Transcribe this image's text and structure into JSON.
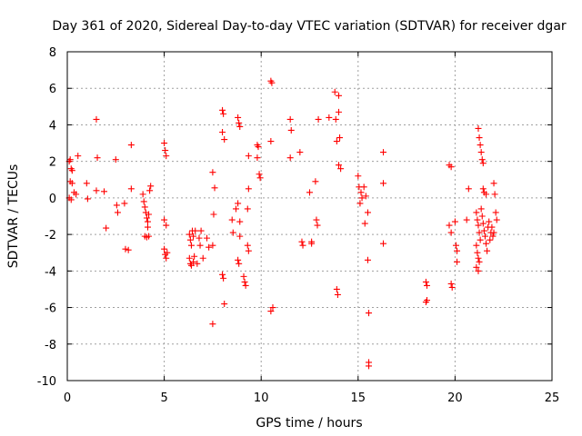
{
  "chart_data": {
    "type": "scatter",
    "title": "Day 361 of 2020, Sidereal Day-to-day VTEC variation (SDTVAR) for receiver dgar",
    "xlabel": "GPS time / hours",
    "ylabel": "SDTVAR / TECUs",
    "xlim": [
      0,
      25
    ],
    "ylim": [
      -10,
      8
    ],
    "xticks": [
      0,
      5,
      10,
      15,
      20,
      25
    ],
    "yticks": [
      -10,
      -8,
      -6,
      -4,
      -2,
      0,
      2,
      4,
      6,
      8
    ],
    "grid": true,
    "marker": "+",
    "color": "#ff0000",
    "series": [
      {
        "name": "SDTVAR",
        "points": [
          [
            0.1,
            2.0
          ],
          [
            0.15,
            2.1
          ],
          [
            0.2,
            1.6
          ],
          [
            0.25,
            1.5
          ],
          [
            0.15,
            0.9
          ],
          [
            0.25,
            0.8
          ],
          [
            0.1,
            0.0
          ],
          [
            0.2,
            -0.1
          ],
          [
            0.35,
            0.3
          ],
          [
            0.45,
            0.2
          ],
          [
            0.55,
            2.3
          ],
          [
            1.0,
            0.8
          ],
          [
            1.05,
            -0.05
          ],
          [
            1.5,
            4.3
          ],
          [
            1.55,
            2.2
          ],
          [
            1.5,
            0.4
          ],
          [
            1.9,
            0.35
          ],
          [
            2.0,
            -1.65
          ],
          [
            2.5,
            2.1
          ],
          [
            2.55,
            -0.4
          ],
          [
            2.6,
            -0.8
          ],
          [
            2.95,
            -0.3
          ],
          [
            3.0,
            -2.8
          ],
          [
            3.15,
            -2.85
          ],
          [
            3.3,
            2.9
          ],
          [
            3.3,
            0.5
          ],
          [
            3.9,
            0.2
          ],
          [
            3.95,
            -0.2
          ],
          [
            4.0,
            -0.5
          ],
          [
            4.05,
            -0.8
          ],
          [
            4.1,
            -1.1
          ],
          [
            4.15,
            -1.3
          ],
          [
            4.2,
            -0.9
          ],
          [
            4.0,
            -2.1
          ],
          [
            4.1,
            -2.15
          ],
          [
            4.2,
            -2.1
          ],
          [
            4.25,
            0.4
          ],
          [
            4.3,
            0.65
          ],
          [
            4.15,
            -1.6
          ],
          [
            5.0,
            3.0
          ],
          [
            5.05,
            2.6
          ],
          [
            5.1,
            2.3
          ],
          [
            5.0,
            -1.2
          ],
          [
            5.1,
            -1.5
          ],
          [
            5.0,
            -2.8
          ],
          [
            5.05,
            -3.1
          ],
          [
            5.1,
            -3.3
          ],
          [
            5.15,
            -3.0
          ],
          [
            6.3,
            -2.0
          ],
          [
            6.35,
            -2.3
          ],
          [
            6.4,
            -2.6
          ],
          [
            6.45,
            -1.8
          ],
          [
            6.5,
            -2.1
          ],
          [
            6.3,
            -3.3
          ],
          [
            6.35,
            -3.6
          ],
          [
            6.4,
            -3.7
          ],
          [
            6.5,
            -3.5
          ],
          [
            6.55,
            -3.2
          ],
          [
            6.6,
            -1.8
          ],
          [
            6.7,
            -3.6
          ],
          [
            6.8,
            -2.2
          ],
          [
            6.85,
            -2.6
          ],
          [
            6.9,
            -1.8
          ],
          [
            7.0,
            -3.3
          ],
          [
            7.2,
            -2.2
          ],
          [
            7.3,
            -2.7
          ],
          [
            7.5,
            -2.6
          ],
          [
            7.55,
            -0.9
          ],
          [
            7.5,
            -6.9
          ],
          [
            7.6,
            0.55
          ],
          [
            7.5,
            1.4
          ],
          [
            8.0,
            4.8
          ],
          [
            8.05,
            4.6
          ],
          [
            8.0,
            3.6
          ],
          [
            8.1,
            3.2
          ],
          [
            8.0,
            -4.2
          ],
          [
            8.05,
            -4.4
          ],
          [
            8.1,
            -5.8
          ],
          [
            8.5,
            -1.2
          ],
          [
            8.55,
            -1.9
          ],
          [
            8.7,
            -0.6
          ],
          [
            8.8,
            -0.3
          ],
          [
            8.9,
            -1.3
          ],
          [
            8.9,
            -2.1
          ],
          [
            8.8,
            -3.4
          ],
          [
            8.85,
            -3.6
          ],
          [
            8.8,
            4.4
          ],
          [
            8.85,
            4.1
          ],
          [
            8.9,
            3.9
          ],
          [
            9.1,
            -4.3
          ],
          [
            9.15,
            -4.6
          ],
          [
            9.2,
            -4.8
          ],
          [
            9.3,
            -2.6
          ],
          [
            9.35,
            -2.9
          ],
          [
            9.35,
            2.3
          ],
          [
            9.35,
            0.5
          ],
          [
            9.3,
            -0.6
          ],
          [
            9.8,
            2.9
          ],
          [
            9.85,
            2.8
          ],
          [
            9.8,
            2.2
          ],
          [
            9.9,
            1.3
          ],
          [
            9.95,
            1.1
          ],
          [
            10.5,
            6.4
          ],
          [
            10.55,
            6.3
          ],
          [
            10.5,
            3.1
          ],
          [
            10.5,
            -6.2
          ],
          [
            10.6,
            -6.0
          ],
          [
            11.5,
            4.3
          ],
          [
            11.55,
            3.7
          ],
          [
            11.5,
            2.2
          ],
          [
            12.0,
            2.5
          ],
          [
            12.1,
            -2.4
          ],
          [
            12.15,
            -2.6
          ],
          [
            12.5,
            0.3
          ],
          [
            12.6,
            -2.4
          ],
          [
            12.6,
            -2.5
          ],
          [
            12.8,
            0.9
          ],
          [
            12.85,
            -1.2
          ],
          [
            12.9,
            -1.5
          ],
          [
            12.95,
            4.3
          ],
          [
            13.5,
            4.4
          ],
          [
            13.8,
            5.8
          ],
          [
            13.85,
            4.3
          ],
          [
            13.9,
            3.1
          ],
          [
            13.9,
            -5.0
          ],
          [
            13.95,
            -5.3
          ],
          [
            14.0,
            5.6
          ],
          [
            14.0,
            4.7
          ],
          [
            14.05,
            3.3
          ],
          [
            14.0,
            1.8
          ],
          [
            14.1,
            1.6
          ],
          [
            15.0,
            1.2
          ],
          [
            15.05,
            0.6
          ],
          [
            15.1,
            -0.3
          ],
          [
            15.15,
            0.3
          ],
          [
            15.2,
            0.0
          ],
          [
            15.3,
            0.6
          ],
          [
            15.35,
            -1.4
          ],
          [
            15.4,
            0.1
          ],
          [
            15.5,
            -0.8
          ],
          [
            15.5,
            -3.4
          ],
          [
            15.55,
            -6.3
          ],
          [
            15.55,
            -9.0
          ],
          [
            15.55,
            -9.2
          ],
          [
            16.3,
            2.5
          ],
          [
            16.3,
            0.8
          ],
          [
            16.3,
            -2.5
          ],
          [
            18.5,
            -4.6
          ],
          [
            18.55,
            -4.8
          ],
          [
            18.5,
            -5.7
          ],
          [
            18.55,
            -5.6
          ],
          [
            19.7,
            1.8
          ],
          [
            19.8,
            1.7
          ],
          [
            19.7,
            -1.5
          ],
          [
            19.8,
            -1.9
          ],
          [
            19.8,
            -4.7
          ],
          [
            19.85,
            -4.9
          ],
          [
            20.0,
            -1.3
          ],
          [
            20.05,
            -2.6
          ],
          [
            20.1,
            -3.5
          ],
          [
            20.1,
            -2.9
          ],
          [
            20.6,
            -1.2
          ],
          [
            20.7,
            0.5
          ],
          [
            21.1,
            -0.8
          ],
          [
            21.15,
            -1.2
          ],
          [
            21.2,
            -1.5
          ],
          [
            21.25,
            -1.9
          ],
          [
            21.3,
            -2.3
          ],
          [
            21.1,
            -2.6
          ],
          [
            21.15,
            -3.0
          ],
          [
            21.2,
            -3.3
          ],
          [
            21.25,
            -3.5
          ],
          [
            21.1,
            -3.8
          ],
          [
            21.2,
            -4.0
          ],
          [
            21.2,
            3.8
          ],
          [
            21.25,
            3.3
          ],
          [
            21.3,
            2.9
          ],
          [
            21.35,
            2.5
          ],
          [
            21.4,
            2.1
          ],
          [
            21.45,
            1.9
          ],
          [
            21.45,
            0.5
          ],
          [
            21.5,
            0.3
          ],
          [
            21.6,
            0.2
          ],
          [
            21.35,
            -0.6
          ],
          [
            21.4,
            -1.0
          ],
          [
            21.45,
            -1.4
          ],
          [
            21.5,
            -1.8
          ],
          [
            21.55,
            -2.1
          ],
          [
            21.6,
            -2.5
          ],
          [
            21.65,
            -2.9
          ],
          [
            21.7,
            -1.6
          ],
          [
            21.75,
            -1.3
          ],
          [
            21.8,
            -2.3
          ],
          [
            21.85,
            -1.9
          ],
          [
            21.9,
            -1.6
          ],
          [
            21.95,
            -2.1
          ],
          [
            22.0,
            -1.9
          ],
          [
            22.0,
            0.8
          ],
          [
            22.05,
            0.2
          ],
          [
            22.1,
            -0.8
          ],
          [
            22.15,
            -1.2
          ]
        ]
      }
    ]
  }
}
